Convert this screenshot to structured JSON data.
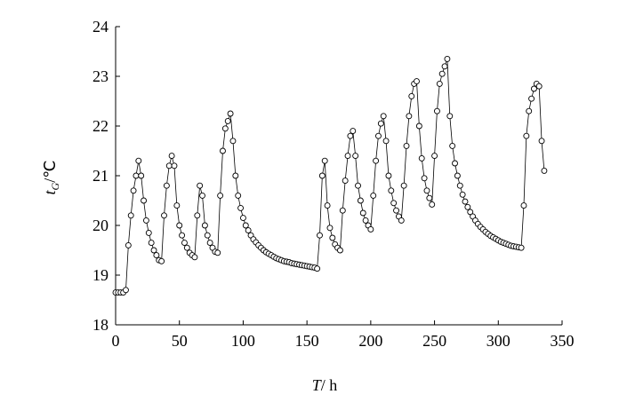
{
  "chart_data": {
    "type": "line",
    "xlabel": {
      "symbol": "T",
      "unit": "/ h"
    },
    "ylabel": {
      "symbol": "t",
      "subscript": "G",
      "unit": "/℃"
    },
    "xlim": [
      0,
      350
    ],
    "xticks": [
      0,
      50,
      100,
      150,
      200,
      250,
      300,
      350
    ],
    "ylim": [
      18,
      24
    ],
    "yticks": [
      18,
      19,
      20,
      21,
      22,
      23,
      24
    ],
    "x": [
      0,
      2,
      4,
      6,
      8,
      10,
      12,
      14,
      16,
      18,
      20,
      22,
      24,
      26,
      28,
      30,
      32,
      34,
      36,
      38,
      40,
      42,
      44,
      46,
      48,
      50,
      52,
      54,
      56,
      58,
      60,
      62,
      64,
      66,
      68,
      70,
      72,
      74,
      76,
      78,
      80,
      82,
      84,
      86,
      88,
      90,
      92,
      94,
      96,
      98,
      100,
      102,
      104,
      106,
      108,
      110,
      112,
      114,
      116,
      118,
      120,
      122,
      124,
      126,
      128,
      130,
      132,
      134,
      136,
      138,
      140,
      142,
      144,
      146,
      148,
      150,
      152,
      154,
      156,
      158,
      160,
      162,
      164,
      166,
      168,
      170,
      172,
      174,
      176,
      178,
      180,
      182,
      184,
      186,
      188,
      190,
      192,
      194,
      196,
      198,
      200,
      202,
      204,
      206,
      208,
      210,
      212,
      214,
      216,
      218,
      220,
      222,
      224,
      226,
      228,
      230,
      232,
      234,
      236,
      238,
      240,
      242,
      244,
      246,
      248,
      250,
      252,
      254,
      256,
      258,
      260,
      262,
      264,
      266,
      268,
      270,
      272,
      274,
      276,
      278,
      280,
      282,
      284,
      286,
      288,
      290,
      292,
      294,
      296,
      298,
      300,
      302,
      304,
      306,
      308,
      310,
      312,
      314,
      316,
      318,
      320,
      322,
      324,
      326,
      328,
      330,
      332,
      334,
      336
    ],
    "series": [
      {
        "color": "#000000",
        "values": [
          18.65,
          18.65,
          18.65,
          18.65,
          18.7,
          19.6,
          20.2,
          20.7,
          21.0,
          21.3,
          21.0,
          20.5,
          20.1,
          19.85,
          19.65,
          19.5,
          19.4,
          19.3,
          19.28,
          20.2,
          20.8,
          21.2,
          21.4,
          21.2,
          20.4,
          20.0,
          19.8,
          19.65,
          19.55,
          19.45,
          19.4,
          19.36,
          20.2,
          20.8,
          20.6,
          20.0,
          19.8,
          19.65,
          19.55,
          19.47,
          19.45,
          20.6,
          21.5,
          21.95,
          22.1,
          22.25,
          21.7,
          21.0,
          20.6,
          20.35,
          20.15,
          20.0,
          19.9,
          19.8,
          19.72,
          19.66,
          19.6,
          19.55,
          19.5,
          19.46,
          19.43,
          19.4,
          19.37,
          19.34,
          19.32,
          19.3,
          19.28,
          19.27,
          19.26,
          19.24,
          19.23,
          19.22,
          19.21,
          19.2,
          19.19,
          19.18,
          19.17,
          19.16,
          19.15,
          19.13,
          19.8,
          21.0,
          21.3,
          20.4,
          19.95,
          19.75,
          19.62,
          19.55,
          19.5,
          20.3,
          20.9,
          21.4,
          21.8,
          21.9,
          21.4,
          20.8,
          20.5,
          20.25,
          20.1,
          20.0,
          19.92,
          20.6,
          21.3,
          21.8,
          22.05,
          22.2,
          21.7,
          21.0,
          20.7,
          20.45,
          20.3,
          20.18,
          20.1,
          20.8,
          21.6,
          22.2,
          22.6,
          22.85,
          22.9,
          22.0,
          21.35,
          20.95,
          20.7,
          20.55,
          20.42,
          21.4,
          22.3,
          22.85,
          23.05,
          23.2,
          23.35,
          22.2,
          21.6,
          21.25,
          21.0,
          20.8,
          20.62,
          20.48,
          20.37,
          20.27,
          20.18,
          20.1,
          20.03,
          19.97,
          19.92,
          19.87,
          19.83,
          19.79,
          19.76,
          19.73,
          19.7,
          19.67,
          19.65,
          19.63,
          19.61,
          19.59,
          19.58,
          19.57,
          19.56,
          19.55,
          20.4,
          21.8,
          22.3,
          22.55,
          22.75,
          22.85,
          22.8,
          21.7,
          21.1
        ]
      }
    ]
  }
}
